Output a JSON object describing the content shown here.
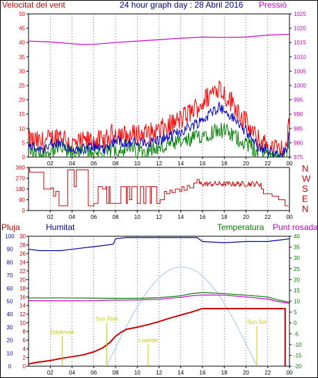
{
  "header": {
    "wind_label": "Velocitat del vent",
    "title": "24 hour graph day : 28 Abril 2016",
    "pressure_label": "Pressió"
  },
  "labels": {
    "rain": "Pluja",
    "humidity": "Humitat",
    "temperature": "Temperatura",
    "dewpoint": "Punt rosada"
  },
  "colors": {
    "wind_gust": "#ff0000",
    "wind_avg": "#0000cc",
    "wind_speed": "#008000",
    "pressure": "#cc00cc",
    "direction": "#cc0000",
    "rain": "#cc0000",
    "humidity": "#0000aa",
    "temperature": "#008000",
    "dewpoint": "#cc00cc",
    "solar": "#9ec4ee",
    "annotation": "#cccc00"
  },
  "x_ticks": [
    "02",
    "04",
    "06",
    "08",
    "10",
    "12",
    "14",
    "16",
    "18",
    "20",
    "22",
    "00"
  ],
  "chart_data": [
    {
      "type": "line",
      "name": "wind-pressure",
      "x_range": [
        0,
        24
      ],
      "y_left": {
        "ticks": [
          0,
          5,
          10,
          15,
          20,
          25,
          30,
          35,
          40,
          45,
          50
        ],
        "range": [
          0,
          50
        ]
      },
      "y_right": {
        "ticks": [
          975,
          980,
          985,
          990,
          995,
          1000,
          1005,
          1010,
          1015,
          1020,
          1025
        ],
        "range": [
          975,
          1025
        ]
      },
      "gust_profile": [
        [
          0,
          6
        ],
        [
          1,
          5
        ],
        [
          2,
          6
        ],
        [
          3,
          8
        ],
        [
          4,
          4
        ],
        [
          5,
          5
        ],
        [
          6,
          6
        ],
        [
          7,
          5
        ],
        [
          8,
          9
        ],
        [
          9,
          7
        ],
        [
          10,
          8
        ],
        [
          11,
          8
        ],
        [
          12,
          9
        ],
        [
          13,
          11
        ],
        [
          14,
          13
        ],
        [
          15,
          16
        ],
        [
          16,
          19
        ],
        [
          17,
          23
        ],
        [
          17.5,
          25
        ],
        [
          18,
          22
        ],
        [
          19,
          18
        ],
        [
          20,
          12
        ],
        [
          21,
          6
        ],
        [
          22,
          4
        ],
        [
          23,
          2
        ],
        [
          23.7,
          3
        ],
        [
          24,
          12
        ]
      ],
      "avg_profile": [
        [
          0,
          4
        ],
        [
          1,
          3
        ],
        [
          2,
          4
        ],
        [
          3,
          5
        ],
        [
          4,
          3
        ],
        [
          5,
          3
        ],
        [
          6,
          4
        ],
        [
          7,
          3
        ],
        [
          8,
          6
        ],
        [
          9,
          5
        ],
        [
          10,
          5
        ],
        [
          11,
          5
        ],
        [
          12,
          6
        ],
        [
          13,
          7
        ],
        [
          14,
          9
        ],
        [
          15,
          11
        ],
        [
          16,
          13
        ],
        [
          17,
          16
        ],
        [
          17.5,
          18
        ],
        [
          18,
          16
        ],
        [
          19,
          13
        ],
        [
          20,
          9
        ],
        [
          21,
          4
        ],
        [
          22,
          3
        ],
        [
          23,
          1
        ],
        [
          23.7,
          2
        ],
        [
          24,
          8
        ]
      ],
      "speed_profile": [
        [
          0,
          2
        ],
        [
          1,
          1
        ],
        [
          2,
          2
        ],
        [
          3,
          3
        ],
        [
          4,
          1
        ],
        [
          5,
          2
        ],
        [
          6,
          2
        ],
        [
          7,
          1
        ],
        [
          8,
          3
        ],
        [
          9,
          3
        ],
        [
          10,
          2
        ],
        [
          11,
          3
        ],
        [
          12,
          3
        ],
        [
          13,
          4
        ],
        [
          14,
          5
        ],
        [
          15,
          6
        ],
        [
          16,
          8
        ],
        [
          17,
          9
        ],
        [
          17.5,
          10
        ],
        [
          18,
          9
        ],
        [
          19,
          7
        ],
        [
          20,
          5
        ],
        [
          21,
          2
        ],
        [
          22,
          1
        ],
        [
          23,
          0
        ],
        [
          23.7,
          1
        ],
        [
          24,
          4
        ]
      ],
      "pressure": [
        [
          0,
          1015.5
        ],
        [
          2,
          1015.2
        ],
        [
          4,
          1014.6
        ],
        [
          5,
          1014.3
        ],
        [
          6,
          1014.4
        ],
        [
          8,
          1015.0
        ],
        [
          10,
          1015.5
        ],
        [
          12,
          1016.0
        ],
        [
          14,
          1016.5
        ],
        [
          16,
          1016.9
        ],
        [
          18,
          1016.8
        ],
        [
          20,
          1016.9
        ],
        [
          22,
          1017.6
        ],
        [
          24,
          1017.9
        ]
      ]
    },
    {
      "type": "line",
      "name": "wind-direction",
      "x_range": [
        0,
        24
      ],
      "y_left": {
        "ticks": [
          0,
          90,
          180,
          270,
          360
        ],
        "range": [
          0,
          360
        ]
      },
      "y_right": {
        "ticks": [
          "N",
          "W",
          "S",
          "E",
          "N"
        ]
      },
      "segments": [
        {
          "x": [
            0,
            0.1,
            0.1,
            1.4,
            1.4,
            2.1,
            2.1,
            2.3,
            2.3,
            2.5,
            2.5,
            2.8,
            2.8,
            3.6,
            3.6,
            4.2,
            4.2,
            4.4,
            4.4,
            5.5,
            5.5,
            6.0,
            6.0,
            6.4,
            6.4,
            6.8,
            6.8,
            7.1,
            7.1,
            7.2,
            7.2,
            7.4,
            7.4,
            7.5,
            7.5,
            8.2,
            8.2,
            8.5,
            8.5,
            9.0,
            9.0,
            9.1,
            9.1,
            9.3,
            9.3,
            9.5,
            9.5,
            10.0,
            10.0,
            10.3,
            10.3,
            10.6,
            10.6,
            10.8,
            10.8,
            11.2,
            11.2,
            11.3,
            11.3,
            11.8,
            11.8,
            12.1,
            12.1,
            12.5,
            12.5,
            12.7,
            12.7,
            13.0,
            13.0,
            13.2,
            13.2,
            13.5,
            13.5,
            13.9,
            13.9,
            14.1,
            14.1,
            14.3,
            14.3,
            14.6,
            14.6,
            14.8,
            14.8,
            15.2,
            15.2,
            15.5,
            15.5,
            15.7
          ],
          "y": [
            350,
            350,
            320,
            320,
            180,
            180,
            190,
            190,
            120,
            120,
            160,
            160,
            40,
            40,
            340,
            340,
            200,
            200,
            340,
            340,
            40,
            40,
            60,
            60,
            200,
            200,
            180,
            180,
            200,
            200,
            60,
            60,
            200,
            200,
            60,
            60,
            60,
            60,
            200,
            200,
            60,
            60,
            200,
            200,
            90,
            90,
            200,
            200,
            60,
            60,
            200,
            200,
            60,
            60,
            200,
            200,
            60,
            60,
            200,
            200,
            60,
            60,
            90,
            90,
            160,
            160,
            140,
            140,
            170,
            170,
            150,
            150,
            180,
            180,
            160,
            160,
            200,
            200,
            170,
            170,
            210,
            210,
            190,
            190,
            230,
            230,
            260,
            260
          ]
        },
        {
          "x": [
            15.7,
            21.4
          ],
          "noise": [
            200,
            245
          ]
        },
        {
          "x": [
            21.4,
            21.6,
            21.6,
            22.4,
            22.4,
            23.0,
            23.0,
            23.6,
            23.6,
            23.9
          ],
          "y": [
            180,
            180,
            140,
            140,
            120,
            120,
            90,
            90,
            40,
            40
          ]
        }
      ]
    },
    {
      "type": "line",
      "name": "humidity-temp-rain",
      "x_range": [
        0,
        24
      ],
      "y_humidity": {
        "ticks": [
          0,
          10,
          20,
          30,
          40,
          50,
          60,
          70,
          80,
          90,
          100
        ],
        "range": [
          0,
          100
        ]
      },
      "y_rain": {
        "ticks": [
          0,
          2,
          4,
          6,
          8,
          10,
          12,
          14,
          16,
          18,
          20,
          22,
          24,
          26,
          28,
          30
        ],
        "range": [
          0,
          30
        ]
      },
      "y_temperature": {
        "ticks": [
          -20,
          -15,
          -10,
          -5,
          0,
          5,
          10,
          15,
          20,
          25,
          30,
          35,
          40
        ],
        "range": [
          -20,
          40
        ]
      },
      "humidity": [
        [
          0,
          90
        ],
        [
          1,
          89
        ],
        [
          2,
          89
        ],
        [
          3,
          89
        ],
        [
          4,
          90
        ],
        [
          5,
          91
        ],
        [
          6,
          92
        ],
        [
          7,
          93
        ],
        [
          7.8,
          94
        ],
        [
          8,
          98
        ],
        [
          9,
          99
        ],
        [
          12,
          99
        ],
        [
          14,
          99
        ],
        [
          15.5,
          99
        ],
        [
          16,
          96
        ],
        [
          18,
          95
        ],
        [
          20,
          96
        ],
        [
          22,
          96
        ],
        [
          23,
          97
        ],
        [
          24,
          98
        ]
      ],
      "temperature": [
        [
          0,
          11.5
        ],
        [
          2,
          11.5
        ],
        [
          4,
          11.5
        ],
        [
          6,
          11.4
        ],
        [
          8,
          11.3
        ],
        [
          10,
          11.3
        ],
        [
          12,
          11.6
        ],
        [
          14,
          12.5
        ],
        [
          15,
          13.5
        ],
        [
          16,
          14.0
        ],
        [
          18,
          13.5
        ],
        [
          20,
          12.8
        ],
        [
          22,
          12.0
        ],
        [
          23,
          10.5
        ],
        [
          24,
          9.5
        ]
      ],
      "dewpoint": [
        [
          0,
          10.3
        ],
        [
          2,
          10.2
        ],
        [
          4,
          10.2
        ],
        [
          6,
          10.3
        ],
        [
          8,
          10.5
        ],
        [
          10,
          10.6
        ],
        [
          12,
          10.9
        ],
        [
          14,
          11.8
        ],
        [
          15,
          12.5
        ],
        [
          16,
          12.9
        ],
        [
          18,
          12.8
        ],
        [
          20,
          12.0
        ],
        [
          22,
          11.0
        ],
        [
          23,
          9.8
        ],
        [
          24,
          9.0
        ]
      ],
      "rain": [
        [
          0,
          0.5
        ],
        [
          0.8,
          0.9
        ],
        [
          2,
          1.3
        ],
        [
          3,
          1.8
        ],
        [
          4,
          2.2
        ],
        [
          5,
          2.6
        ],
        [
          6,
          3.3
        ],
        [
          6.8,
          4.2
        ],
        [
          7.5,
          5.5
        ],
        [
          8,
          6.9
        ],
        [
          8.5,
          7.8
        ],
        [
          9,
          8.5
        ],
        [
          10,
          9.0
        ],
        [
          11,
          9.6
        ],
        [
          12,
          10.3
        ],
        [
          13,
          11.1
        ],
        [
          14,
          11.8
        ],
        [
          15,
          12.5
        ],
        [
          16,
          13.3
        ],
        [
          17,
          13.3
        ],
        [
          20,
          13.3
        ],
        [
          23.6,
          13.3
        ],
        [
          23.6,
          0
        ]
      ],
      "solar_peak_x": 14,
      "solar_range": [
        7.2,
        21.0
      ],
      "annotations": [
        {
          "label": "Daybreak",
          "x": 3.1,
          "y": 7.5
        },
        {
          "label": "Sun Rise",
          "x": 7.2,
          "y": 10.5
        },
        {
          "label": "Lowtide",
          "x": 11.0,
          "y": 5.5
        },
        {
          "label": "Sun Set",
          "x": 21.0,
          "y": 9.8
        }
      ]
    }
  ]
}
